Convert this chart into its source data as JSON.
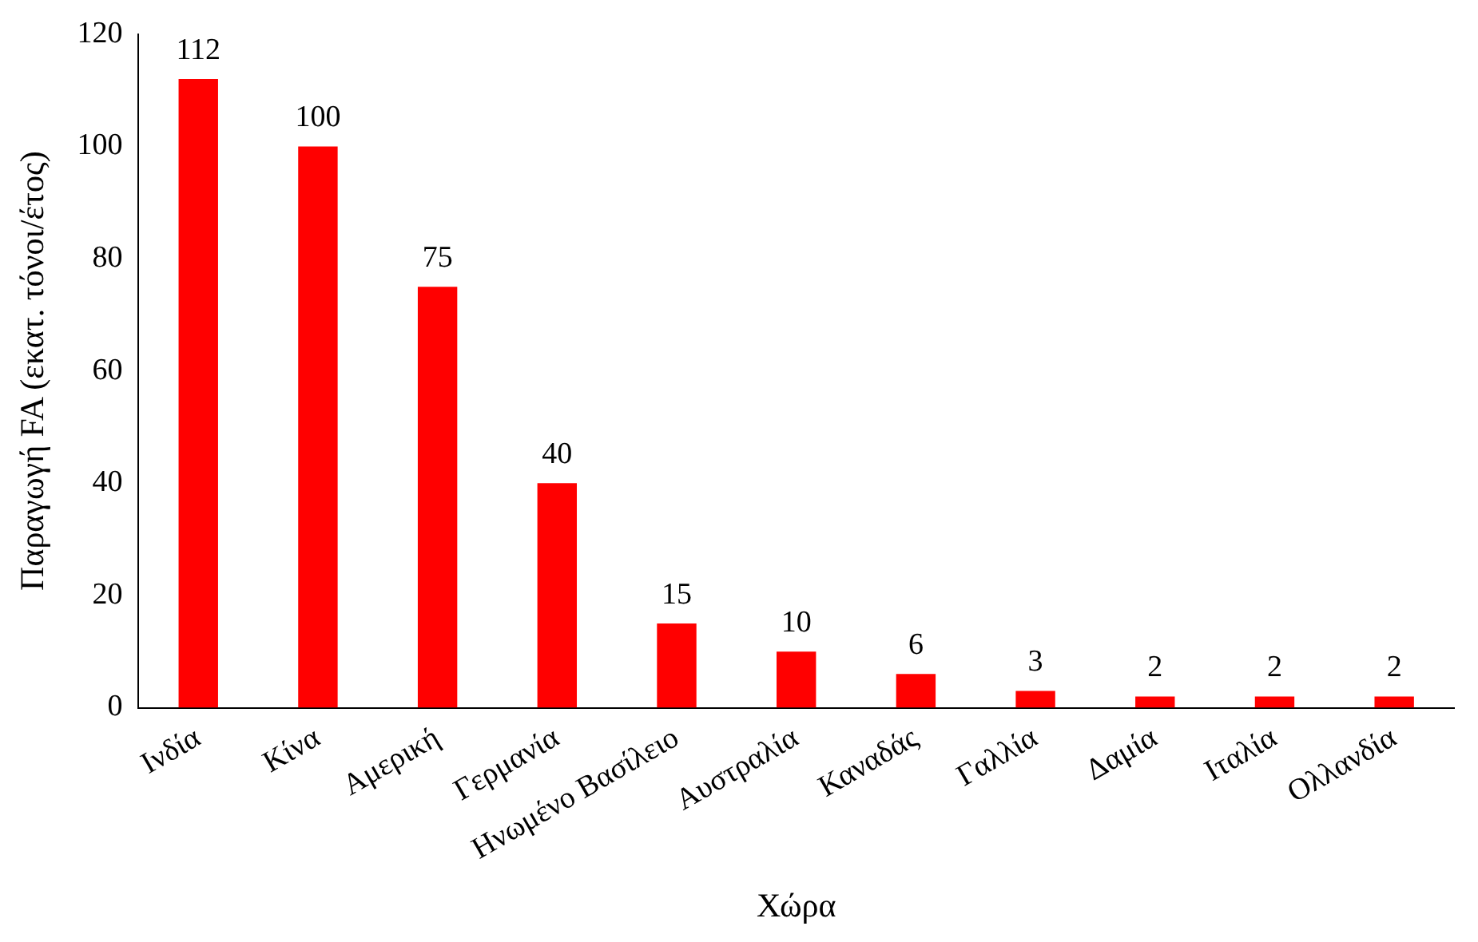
{
  "chart_data": {
    "type": "bar",
    "xlabel": "Χώρα",
    "ylabel": "Παραγωγή FA (εκατ. τόνοι/έτος)",
    "categories": [
      "Ινδία",
      "Κίνα",
      "Αμερική",
      "Γερμανία",
      "Ηνωμένο Βασίλειο",
      "Αυστραλία",
      "Καναδάς",
      "Γαλλία",
      "Δαμία",
      "Ιταλία",
      "Ολλανδία"
    ],
    "values": [
      112,
      100,
      75,
      40,
      15,
      10,
      6,
      3,
      2,
      2,
      2
    ],
    "color": "#ff0000",
    "ylim": [
      0,
      120
    ],
    "yticks": [
      0,
      20,
      40,
      60,
      80,
      100,
      120
    ],
    "grid": false,
    "data_labels": true
  }
}
